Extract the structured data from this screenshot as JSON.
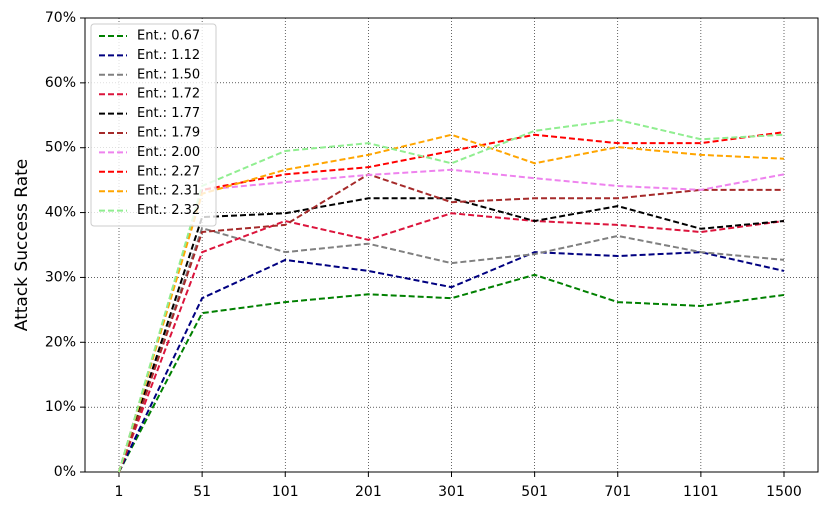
{
  "chart_data": {
    "type": "line",
    "ylabel": "Attack Success Rate",
    "categories": [
      "1",
      "51",
      "101",
      "201",
      "301",
      "501",
      "701",
      "1101",
      "1500"
    ],
    "ylim": [
      0,
      70
    ],
    "yticks": [
      {
        "value": 0,
        "label": "0%"
      },
      {
        "value": 10,
        "label": "10%"
      },
      {
        "value": 20,
        "label": "20%"
      },
      {
        "value": 30,
        "label": "30%"
      },
      {
        "value": 40,
        "label": "40%"
      },
      {
        "value": 50,
        "label": "50%"
      },
      {
        "value": 60,
        "label": "60%"
      },
      {
        "value": 70,
        "label": "70%"
      }
    ],
    "grid": true,
    "legend": "upper left",
    "series": [
      {
        "name": "Ent.: 0.67",
        "color": "#008000",
        "values": [
          0,
          24.5,
          26.2,
          27.4,
          26.8,
          30.4,
          26.2,
          25.6,
          27.3
        ]
      },
      {
        "name": "Ent.: 1.12",
        "color": "#000080",
        "values": [
          0,
          26.8,
          32.7,
          31.0,
          28.5,
          33.9,
          33.3,
          33.9,
          31.0
        ]
      },
      {
        "name": "Ent.: 1.50",
        "color": "#808080",
        "values": [
          0,
          37.6,
          33.9,
          35.2,
          32.2,
          33.6,
          36.4,
          33.9,
          32.7
        ]
      },
      {
        "name": "Ent.: 1.72",
        "color": "#dc143c",
        "values": [
          0,
          33.9,
          38.7,
          35.8,
          39.9,
          38.7,
          38.1,
          37.0,
          38.7
        ]
      },
      {
        "name": "Ent.: 1.77",
        "color": "#000000",
        "values": [
          0,
          39.3,
          39.9,
          42.2,
          42.2,
          38.7,
          41.0,
          37.5,
          38.7
        ]
      },
      {
        "name": "Ent.: 1.79",
        "color": "#a52a2a",
        "values": [
          0,
          37.0,
          38.1,
          45.9,
          41.6,
          42.2,
          42.2,
          43.5,
          43.5
        ]
      },
      {
        "name": "Ent.: 2.00",
        "color": "#ee82ee",
        "values": [
          0,
          43.5,
          44.7,
          45.8,
          46.6,
          45.3,
          44.1,
          43.5,
          45.9
        ]
      },
      {
        "name": "Ent.: 2.27",
        "color": "#ff0000",
        "values": [
          0,
          43.5,
          45.9,
          47.0,
          49.5,
          52.0,
          50.7,
          50.7,
          52.4
        ]
      },
      {
        "name": "Ent.: 2.31",
        "color": "#ffa500",
        "values": [
          0,
          42.9,
          46.6,
          48.9,
          52.0,
          47.6,
          50.1,
          48.9,
          48.3
        ]
      },
      {
        "name": "Ent.: 2.32",
        "color": "#90ee90",
        "values": [
          0,
          44.1,
          49.5,
          50.7,
          47.6,
          52.6,
          54.3,
          51.3,
          52.0
        ]
      }
    ]
  }
}
